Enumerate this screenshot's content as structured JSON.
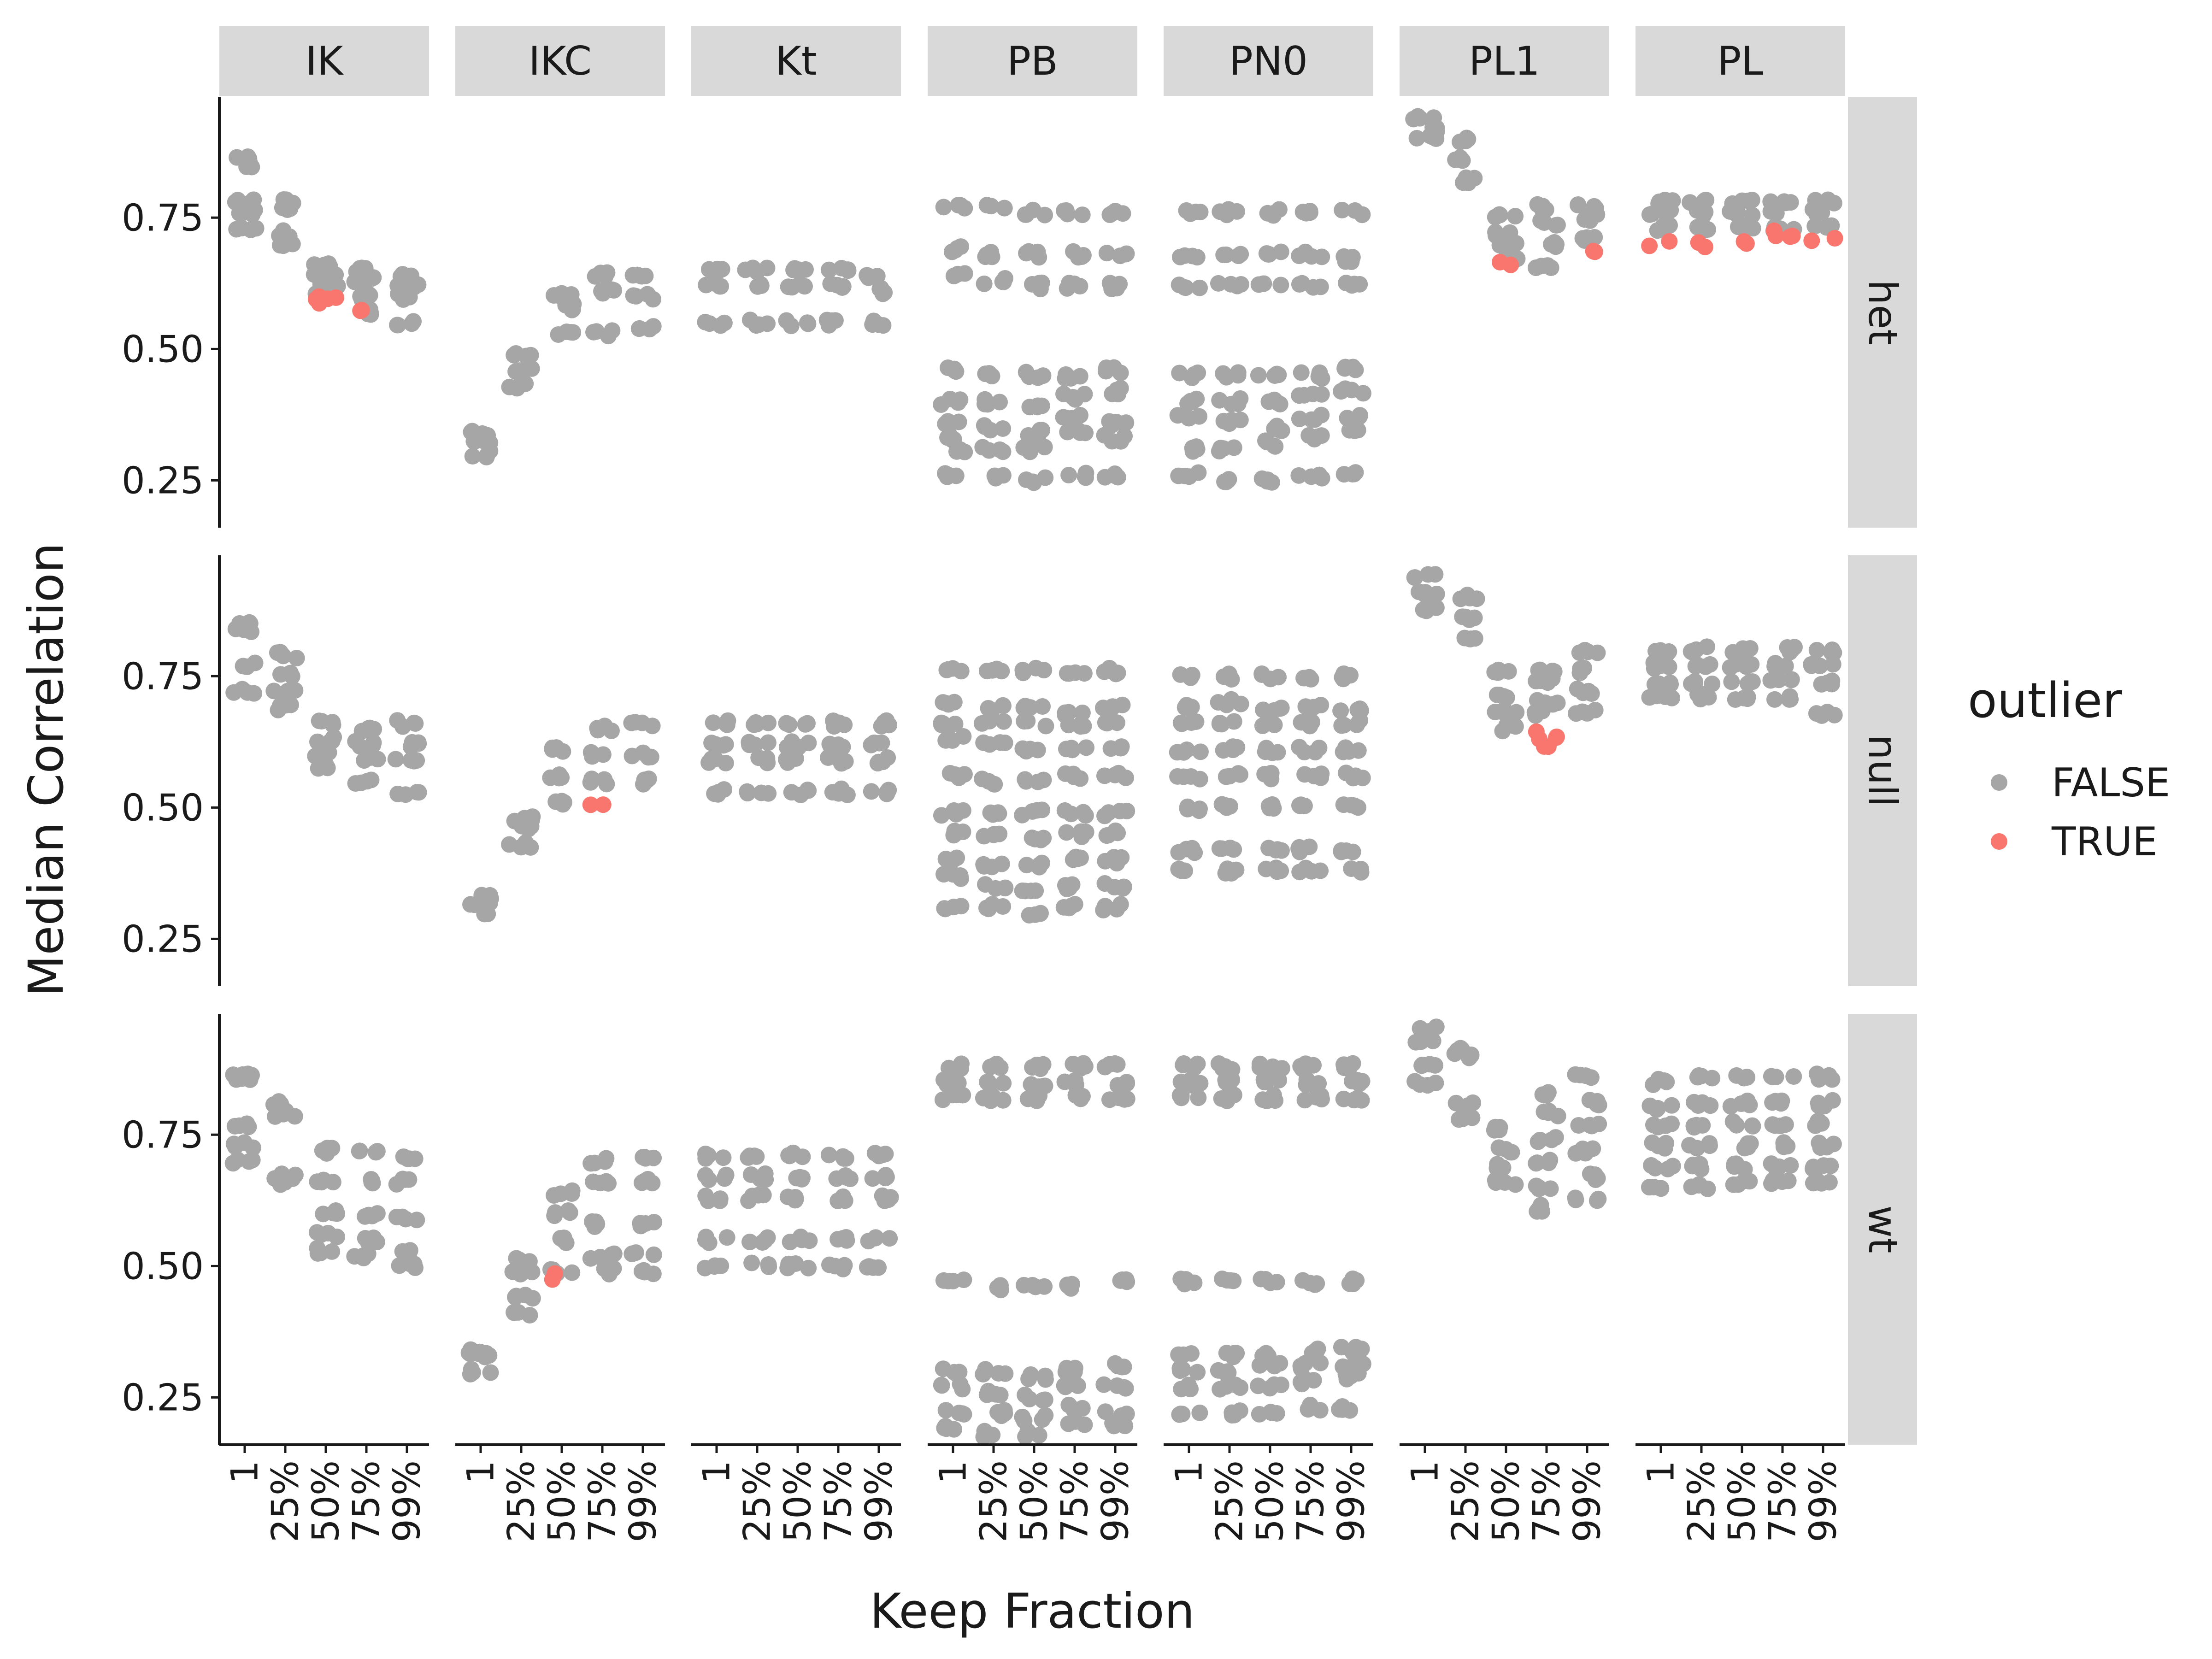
{
  "chart_data": {
    "type": "scatter",
    "facets": {
      "columns": [
        "IK",
        "IKC",
        "Kt",
        "PB",
        "PN0",
        "PL1",
        "PL"
      ],
      "rows": [
        "het",
        "null",
        "wt"
      ]
    },
    "xlabel": "Keep Fraction",
    "ylabel": "Median Correlation",
    "x_categories": [
      "1",
      "25%",
      "50%",
      "75%",
      "99%"
    ],
    "y_ticks": [
      "0.25",
      "0.50",
      "0.75"
    ],
    "y_tick_values": [
      0.25,
      0.5,
      0.75
    ],
    "ylim": [
      0.16,
      0.98
    ],
    "legend": {
      "title": "outlier",
      "position": "right",
      "entries": [
        {
          "label": "FALSE",
          "color": "#A6A6A6"
        },
        {
          "label": "TRUE",
          "color": "#F8766D"
        }
      ]
    },
    "grid": false,
    "description_of_values": "Each x position shows a jittered vertical cluster of points; listed values are the approximate median-correlation levels read from the chart.",
    "panels": {
      "IK": {
        "het": {
          "false": [
            [
              0.86,
              0.85,
              0.78,
              0.76,
              0.73
            ],
            [
              0.78,
              0.77,
              0.72,
              0.7
            ],
            [
              0.66,
              0.64,
              0.62,
              0.6
            ],
            [
              0.65,
              0.63,
              0.6,
              0.57
            ],
            [
              0.64,
              0.62,
              0.6,
              0.55
            ]
          ],
          "true": [
            [],
            [],
            [
              0.6,
              0.59,
              0.59
            ],
            [
              0.57
            ],
            []
          ]
        },
        "null": {
          "false": [
            [
              0.85,
              0.84,
              0.77,
              0.72
            ],
            [
              0.79,
              0.75,
              0.72,
              0.69
            ],
            [
              0.66,
              0.63,
              0.6,
              0.58
            ],
            [
              0.65,
              0.62,
              0.59,
              0.55
            ],
            [
              0.66,
              0.62,
              0.59,
              0.53
            ]
          ],
          "true": [
            [],
            [],
            [],
            [],
            []
          ]
        },
        "wt": {
          "false": [
            [
              0.86,
              0.86,
              0.77,
              0.73,
              0.7
            ],
            [
              0.81,
              0.79,
              0.67,
              0.66
            ],
            [
              0.72,
              0.66,
              0.6,
              0.56,
              0.53
            ],
            [
              0.72,
              0.66,
              0.6,
              0.55,
              0.52
            ],
            [
              0.71,
              0.66,
              0.59,
              0.53,
              0.5
            ]
          ],
          "true": [
            [],
            [],
            [],
            [],
            []
          ]
        }
      },
      "IKC": {
        "het": {
          "false": [
            [
              0.34,
              0.32,
              0.3
            ],
            [
              0.49,
              0.46,
              0.43
            ],
            [
              0.6,
              0.58,
              0.53
            ],
            [
              0.64,
              0.61,
              0.53
            ],
            [
              0.64,
              0.6,
              0.54
            ]
          ],
          "true": [
            [],
            [],
            [],
            [],
            []
          ]
        },
        "null": {
          "false": [
            [
              0.33,
              0.32,
              0.3
            ],
            [
              0.48,
              0.46,
              0.43
            ],
            [
              0.61,
              0.56,
              0.51
            ],
            [
              0.65,
              0.6,
              0.55
            ],
            [
              0.66,
              0.6,
              0.55
            ]
          ],
          "true": [
            [],
            [],
            [],
            [
              0.51
            ],
            []
          ]
        },
        "wt": {
          "false": [
            [
              0.34,
              0.33,
              0.3
            ],
            [
              0.51,
              0.49,
              0.44,
              0.41
            ],
            [
              0.64,
              0.6,
              0.55,
              0.49
            ],
            [
              0.7,
              0.66,
              0.58,
              0.52,
              0.49
            ],
            [
              0.71,
              0.66,
              0.58,
              0.52,
              0.49
            ]
          ],
          "true": [
            [],
            [],
            [
              0.48
            ],
            [],
            []
          ]
        }
      },
      "Kt": {
        "het": {
          "false": [
            [
              0.65,
              0.62,
              0.55
            ],
            [
              0.65,
              0.62,
              0.55
            ],
            [
              0.65,
              0.62,
              0.55
            ],
            [
              0.65,
              0.62,
              0.55
            ],
            [
              0.64,
              0.61,
              0.55
            ]
          ],
          "true": [
            [],
            [],
            [],
            [],
            []
          ]
        },
        "null": {
          "false": [
            [
              0.66,
              0.62,
              0.59,
              0.53
            ],
            [
              0.66,
              0.62,
              0.59,
              0.53
            ],
            [
              0.66,
              0.62,
              0.59,
              0.53
            ],
            [
              0.66,
              0.62,
              0.59,
              0.53
            ],
            [
              0.66,
              0.62,
              0.59,
              0.53
            ]
          ],
          "true": [
            [],
            [],
            [],
            [],
            []
          ]
        },
        "wt": {
          "false": [
            [
              0.71,
              0.67,
              0.63,
              0.55,
              0.5
            ],
            [
              0.71,
              0.67,
              0.63,
              0.55,
              0.5
            ],
            [
              0.71,
              0.67,
              0.63,
              0.55,
              0.5
            ],
            [
              0.71,
              0.67,
              0.63,
              0.55,
              0.5
            ],
            [
              0.71,
              0.67,
              0.63,
              0.55,
              0.5
            ]
          ],
          "true": [
            [],
            [],
            [],
            [],
            []
          ]
        }
      },
      "PB": {
        "het": {
          "false": [
            [
              0.77,
              0.69,
              0.64,
              0.46,
              0.4,
              0.36,
              0.33,
              0.31,
              0.26
            ],
            [
              0.77,
              0.68,
              0.63,
              0.45,
              0.4,
              0.35,
              0.31,
              0.26
            ],
            [
              0.76,
              0.68,
              0.62,
              0.45,
              0.39,
              0.34,
              0.31,
              0.25
            ],
            [
              0.76,
              0.68,
              0.62,
              0.45,
              0.41,
              0.37,
              0.34,
              0.26
            ],
            [
              0.76,
              0.68,
              0.62,
              0.46,
              0.42,
              0.36,
              0.33,
              0.26
            ]
          ],
          "true": [
            [],
            [],
            [],
            [],
            []
          ]
        },
        "null": {
          "false": [
            [
              0.76,
              0.7,
              0.66,
              0.63,
              0.56,
              0.49,
              0.45,
              0.4,
              0.37,
              0.31
            ],
            [
              0.76,
              0.69,
              0.66,
              0.62,
              0.55,
              0.49,
              0.45,
              0.39,
              0.35,
              0.31
            ],
            [
              0.76,
              0.69,
              0.66,
              0.61,
              0.55,
              0.49,
              0.44,
              0.39,
              0.34,
              0.3
            ],
            [
              0.76,
              0.68,
              0.66,
              0.61,
              0.56,
              0.49,
              0.45,
              0.4,
              0.35,
              0.31
            ],
            [
              0.76,
              0.69,
              0.66,
              0.61,
              0.56,
              0.49,
              0.45,
              0.4,
              0.35,
              0.31
            ]
          ],
          "true": [
            [],
            [],
            [],
            [],
            []
          ]
        },
        "wt": {
          "false": [
            [
              0.88,
              0.85,
              0.82,
              0.47,
              0.3,
              0.27,
              0.22,
              0.19
            ],
            [
              0.88,
              0.85,
              0.82,
              0.46,
              0.3,
              0.26,
              0.22,
              0.18
            ],
            [
              0.88,
              0.84,
              0.82,
              0.46,
              0.29,
              0.25,
              0.21,
              0.18
            ],
            [
              0.88,
              0.85,
              0.82,
              0.46,
              0.3,
              0.27,
              0.23,
              0.2
            ],
            [
              0.88,
              0.85,
              0.82,
              0.47,
              0.31,
              0.27,
              0.22,
              0.2
            ]
          ],
          "true": [
            [],
            [],
            [],
            [],
            []
          ]
        }
      },
      "PN0": {
        "het": {
          "false": [
            [
              0.76,
              0.68,
              0.62,
              0.45,
              0.4,
              0.37,
              0.31,
              0.26
            ],
            [
              0.76,
              0.68,
              0.62,
              0.45,
              0.4,
              0.36,
              0.31,
              0.25
            ],
            [
              0.76,
              0.68,
              0.62,
              0.45,
              0.4,
              0.35,
              0.32,
              0.25
            ],
            [
              0.76,
              0.68,
              0.62,
              0.45,
              0.41,
              0.37,
              0.33,
              0.26
            ],
            [
              0.76,
              0.67,
              0.62,
              0.46,
              0.42,
              0.37,
              0.35,
              0.26
            ]
          ],
          "true": [
            [],
            [],
            [],
            [],
            []
          ]
        },
        "null": {
          "false": [
            [
              0.75,
              0.69,
              0.66,
              0.61,
              0.56,
              0.5,
              0.42,
              0.38
            ],
            [
              0.75,
              0.7,
              0.66,
              0.61,
              0.56,
              0.5,
              0.42,
              0.38
            ],
            [
              0.75,
              0.69,
              0.66,
              0.61,
              0.56,
              0.5,
              0.42,
              0.38
            ],
            [
              0.75,
              0.69,
              0.66,
              0.61,
              0.56,
              0.5,
              0.42,
              0.38
            ],
            [
              0.75,
              0.69,
              0.66,
              0.61,
              0.56,
              0.5,
              0.42,
              0.38
            ]
          ],
          "true": [
            [],
            [],
            [],
            [],
            []
          ]
        },
        "wt": {
          "false": [
            [
              0.88,
              0.85,
              0.82,
              0.47,
              0.33,
              0.3,
              0.27,
              0.22
            ],
            [
              0.88,
              0.85,
              0.82,
              0.47,
              0.33,
              0.3,
              0.27,
              0.22
            ],
            [
              0.88,
              0.85,
              0.82,
              0.47,
              0.33,
              0.31,
              0.27,
              0.22
            ],
            [
              0.88,
              0.85,
              0.82,
              0.47,
              0.34,
              0.31,
              0.28,
              0.23
            ],
            [
              0.88,
              0.85,
              0.82,
              0.47,
              0.34,
              0.31,
              0.29,
              0.23
            ]
          ],
          "true": [
            [],
            [],
            [],
            [],
            []
          ]
        }
      },
      "PL1": {
        "het": {
          "false": [
            [
              0.94,
              0.92,
              0.9
            ],
            [
              0.9,
              0.86,
              0.82
            ],
            [
              0.75,
              0.72,
              0.7,
              0.67
            ],
            [
              0.77,
              0.74,
              0.7,
              0.66
            ],
            [
              0.77,
              0.75,
              0.71
            ]
          ],
          "true": [
            [],
            [],
            [
              0.66
            ],
            [],
            [
              0.69
            ]
          ]
        },
        "null": {
          "false": [
            [
              0.94,
              0.91,
              0.88
            ],
            [
              0.9,
              0.86,
              0.82
            ],
            [
              0.76,
              0.71,
              0.68,
              0.65
            ],
            [
              0.76,
              0.74,
              0.7,
              0.68
            ],
            [
              0.8,
              0.76,
              0.72,
              0.68
            ]
          ],
          "true": [
            [],
            [],
            [],
            [
              0.64,
              0.63,
              0.62
            ],
            []
          ]
        },
        "wt": {
          "false": [
            [
              0.95,
              0.93,
              0.88,
              0.85
            ],
            [
              0.91,
              0.9,
              0.81,
              0.78
            ],
            [
              0.76,
              0.72,
              0.69,
              0.66
            ],
            [
              0.83,
              0.79,
              0.74,
              0.7,
              0.65,
              0.61
            ],
            [
              0.86,
              0.81,
              0.77,
              0.72,
              0.67,
              0.63
            ]
          ],
          "true": [
            [],
            [],
            [],
            [],
            []
          ]
        }
      },
      "PL": {
        "het": {
          "false": [
            [
              0.78,
              0.76,
              0.73
            ],
            [
              0.78,
              0.76,
              0.73
            ],
            [
              0.78,
              0.76,
              0.73
            ],
            [
              0.78,
              0.76,
              0.73
            ],
            [
              0.78,
              0.76,
              0.73
            ]
          ],
          "true": [
            [
              0.7
            ],
            [
              0.7
            ],
            [
              0.7
            ],
            [
              0.72,
              0.71
            ],
            [
              0.71
            ]
          ]
        },
        "null": {
          "false": [
            [
              0.8,
              0.77,
              0.74,
              0.71
            ],
            [
              0.8,
              0.77,
              0.74,
              0.71
            ],
            [
              0.8,
              0.77,
              0.74,
              0.71
            ],
            [
              0.8,
              0.77,
              0.74,
              0.71
            ],
            [
              0.8,
              0.77,
              0.74,
              0.68
            ]
          ],
          "true": [
            [],
            [],
            [],
            [],
            []
          ]
        },
        "wt": {
          "false": [
            [
              0.85,
              0.8,
              0.77,
              0.73,
              0.69,
              0.65
            ],
            [
              0.86,
              0.81,
              0.77,
              0.73,
              0.69,
              0.65
            ],
            [
              0.86,
              0.81,
              0.77,
              0.73,
              0.69,
              0.66
            ],
            [
              0.86,
              0.81,
              0.77,
              0.73,
              0.69,
              0.66
            ],
            [
              0.86,
              0.81,
              0.77,
              0.73,
              0.69,
              0.66
            ]
          ],
          "true": [
            [],
            [],
            [],
            [],
            []
          ]
        }
      }
    }
  }
}
